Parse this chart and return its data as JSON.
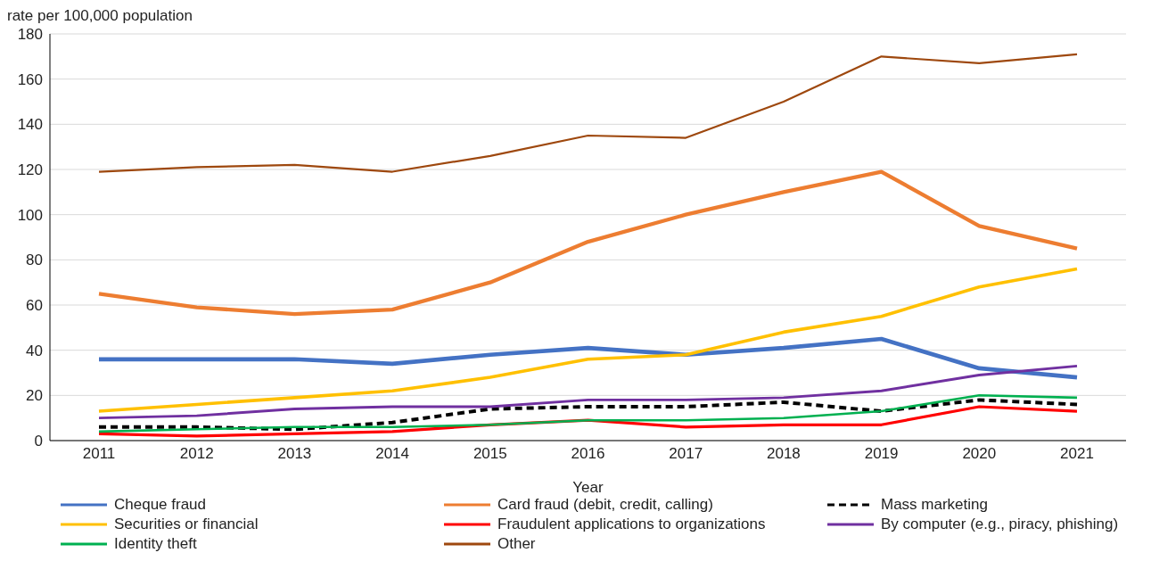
{
  "chart_data": {
    "type": "line",
    "ylabel": "rate per 100,000 population",
    "xlabel": "Year",
    "categories": [
      "2011",
      "2012",
      "2013",
      "2014",
      "2015",
      "2016",
      "2017",
      "2018",
      "2019",
      "2020",
      "2021"
    ],
    "ylim": [
      0,
      180
    ],
    "yticks": [
      0,
      20,
      40,
      60,
      80,
      100,
      120,
      140,
      160,
      180
    ],
    "grid": "y",
    "legend": "bottom",
    "marker": "none",
    "line_style": "solid",
    "series": [
      {
        "name": "Cheque fraud",
        "color": "#4472c4",
        "values": [
          36,
          36,
          36,
          34,
          38,
          41,
          38,
          41,
          45,
          32,
          28
        ]
      },
      {
        "name": "Card fraud (debit, credit, calling)",
        "color": "#ed7d31",
        "values": [
          65,
          59,
          56,
          58,
          70,
          88,
          100,
          110,
          119,
          95,
          85
        ]
      },
      {
        "name": "Mass marketing",
        "color": "#000000",
        "line_style": "dashed",
        "values": [
          6,
          6,
          5,
          8,
          14,
          15,
          15,
          17,
          13,
          18,
          16
        ]
      },
      {
        "name": "Securities or financial",
        "color": "#ffc000",
        "values": [
          13,
          16,
          19,
          22,
          28,
          36,
          38,
          48,
          55,
          68,
          76
        ]
      },
      {
        "name": "Fraudulent applications to organizations",
        "color": "#ff0000",
        "values": [
          3,
          2,
          3,
          4,
          7,
          9,
          6,
          7,
          7,
          15,
          13
        ]
      },
      {
        "name": "By computer (e.g., piracy, phishing)",
        "color": "#7030a0",
        "values": [
          10,
          11,
          14,
          15,
          15,
          18,
          18,
          19,
          22,
          29,
          33
        ]
      },
      {
        "name": "Identity theft",
        "color": "#00b050",
        "values": [
          4,
          5,
          6,
          6,
          7,
          9,
          9,
          10,
          13,
          20,
          19
        ]
      },
      {
        "name": "Other",
        "color": "#9e480e",
        "values": [
          119,
          121,
          122,
          119,
          126,
          135,
          134,
          150,
          170,
          167,
          171
        ]
      }
    ]
  }
}
